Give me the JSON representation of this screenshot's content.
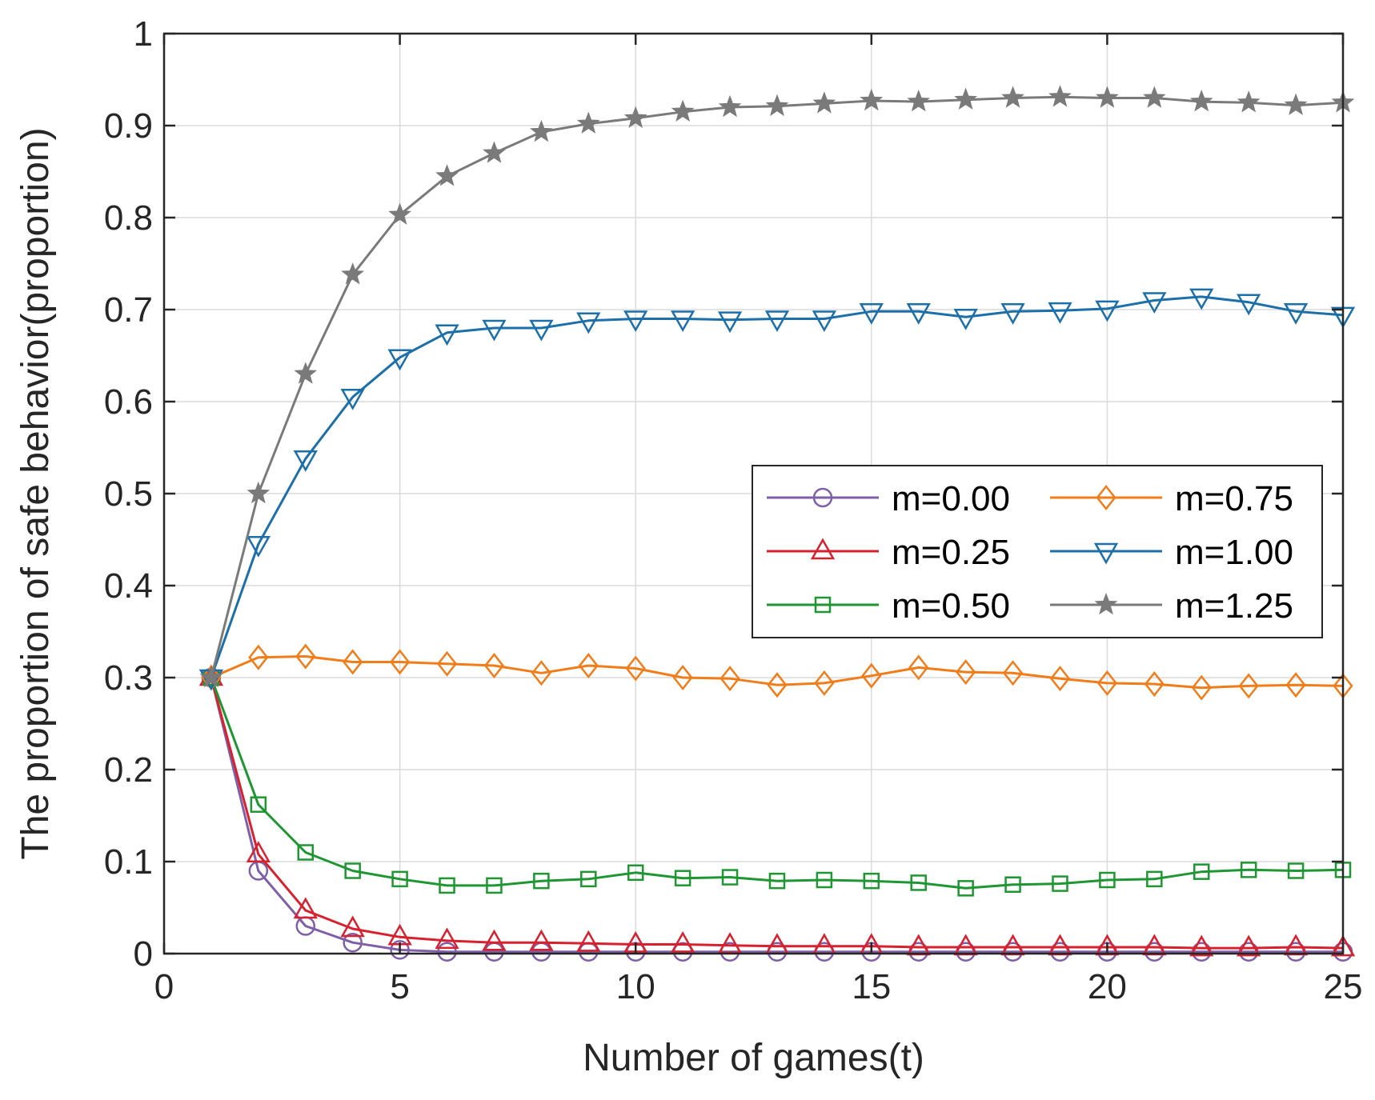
{
  "chart_data": {
    "type": "line",
    "xlabel": "Number of games(t)",
    "ylabel": "The proportion of safe behavior(proportion)",
    "xlim": [
      0,
      25
    ],
    "ylim": [
      0,
      1
    ],
    "xticks": [
      "0",
      "5",
      "10",
      "15",
      "20",
      "25"
    ],
    "yticks": [
      "0",
      "0.1",
      "0.2",
      "0.3",
      "0.4",
      "0.5",
      "0.6",
      "0.7",
      "0.8",
      "0.9",
      "1"
    ],
    "grid": true,
    "legend_position": "center-right",
    "x": [
      1,
      2,
      3,
      4,
      5,
      6,
      7,
      8,
      9,
      10,
      11,
      12,
      13,
      14,
      15,
      16,
      17,
      18,
      19,
      20,
      21,
      22,
      23,
      24,
      25
    ],
    "series": [
      {
        "name": "m=0.00",
        "color": "#7E5FA8",
        "marker": "circle",
        "values": [
          0.3,
          0.09,
          0.03,
          0.012,
          0.004,
          0.002,
          0.002,
          0.002,
          0.002,
          0.002,
          0.002,
          0.002,
          0.002,
          0.002,
          0.002,
          0.002,
          0.002,
          0.002,
          0.002,
          0.002,
          0.002,
          0.002,
          0.002,
          0.002,
          0.002
        ]
      },
      {
        "name": "m=0.25",
        "color": "#D7212E",
        "marker": "triangle-up",
        "values": [
          0.3,
          0.108,
          0.047,
          0.027,
          0.018,
          0.014,
          0.012,
          0.012,
          0.011,
          0.01,
          0.01,
          0.009,
          0.008,
          0.008,
          0.008,
          0.007,
          0.007,
          0.007,
          0.007,
          0.007,
          0.007,
          0.006,
          0.006,
          0.007,
          0.006
        ]
      },
      {
        "name": "m=0.50",
        "color": "#1E9632",
        "marker": "square",
        "values": [
          0.3,
          0.162,
          0.11,
          0.09,
          0.081,
          0.074,
          0.074,
          0.079,
          0.081,
          0.088,
          0.082,
          0.083,
          0.079,
          0.08,
          0.079,
          0.077,
          0.071,
          0.075,
          0.076,
          0.08,
          0.081,
          0.089,
          0.091,
          0.09,
          0.091
        ]
      },
      {
        "name": "m=0.75",
        "color": "#F07D1A",
        "marker": "diamond",
        "values": [
          0.3,
          0.322,
          0.323,
          0.317,
          0.317,
          0.315,
          0.313,
          0.305,
          0.313,
          0.31,
          0.3,
          0.299,
          0.292,
          0.294,
          0.302,
          0.311,
          0.306,
          0.305,
          0.299,
          0.294,
          0.293,
          0.289,
          0.291,
          0.292,
          0.291
        ]
      },
      {
        "name": "m=1.00",
        "color": "#1C6FA8",
        "marker": "triangle-down",
        "values": [
          0.3,
          0.445,
          0.538,
          0.605,
          0.648,
          0.675,
          0.68,
          0.68,
          0.688,
          0.69,
          0.69,
          0.689,
          0.69,
          0.69,
          0.698,
          0.698,
          0.692,
          0.698,
          0.699,
          0.701,
          0.71,
          0.714,
          0.708,
          0.698,
          0.694
        ]
      },
      {
        "name": "m=1.25",
        "color": "#7A7A7A",
        "marker": "star",
        "values": [
          0.3,
          0.5,
          0.63,
          0.738,
          0.803,
          0.845,
          0.87,
          0.893,
          0.902,
          0.908,
          0.915,
          0.92,
          0.921,
          0.924,
          0.927,
          0.926,
          0.928,
          0.93,
          0.931,
          0.93,
          0.93,
          0.926,
          0.925,
          0.922,
          0.925
        ]
      }
    ]
  }
}
